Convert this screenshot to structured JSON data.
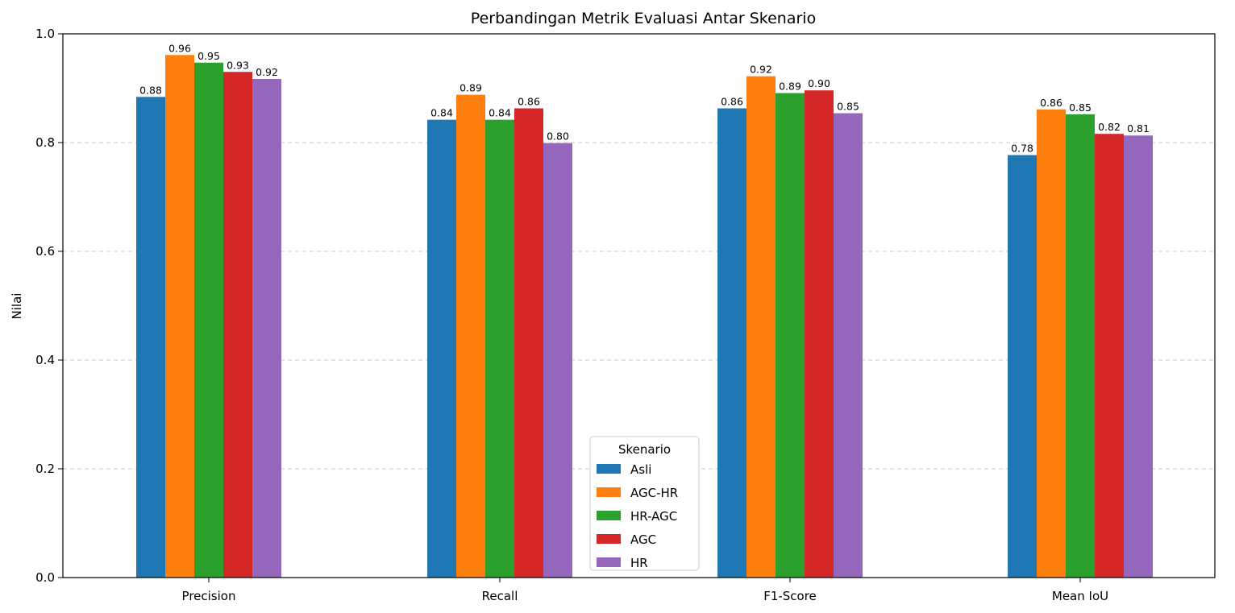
{
  "chart_data": {
    "type": "bar",
    "title": "Perbandingan Metrik Evaluasi Antar Skenario",
    "xlabel": "",
    "ylabel": "Nilai",
    "ylim": [
      0,
      1.0
    ],
    "yticks": [
      "0.0",
      "0.2",
      "0.4",
      "0.6",
      "0.8",
      "1.0"
    ],
    "grid": "y-dashed",
    "categories": [
      "Precision",
      "Recall",
      "F1-Score",
      "Mean IoU"
    ],
    "legend": {
      "title": "Skenario",
      "placement": "lower-center"
    },
    "series": [
      {
        "name": "Asli",
        "color": "#1f77b4",
        "values": [
          0.884,
          0.842,
          0.863,
          0.777
        ],
        "labels": [
          "0.88",
          "0.84",
          "0.86",
          "0.78"
        ]
      },
      {
        "name": "AGC-HR",
        "color": "#ff7f0e",
        "values": [
          0.961,
          0.888,
          0.922,
          0.861
        ],
        "labels": [
          "0.96",
          "0.89",
          "0.92",
          "0.86"
        ]
      },
      {
        "name": "HR-AGC",
        "color": "#2ca02c",
        "values": [
          0.947,
          0.842,
          0.891,
          0.852
        ],
        "labels": [
          "0.95",
          "0.84",
          "0.89",
          "0.85"
        ]
      },
      {
        "name": "AGC",
        "color": "#d62728",
        "values": [
          0.93,
          0.863,
          0.896,
          0.816
        ],
        "labels": [
          "0.93",
          "0.86",
          "0.90",
          "0.82"
        ]
      },
      {
        "name": "HR",
        "color": "#9467bd",
        "values": [
          0.917,
          0.799,
          0.854,
          0.813
        ],
        "labels": [
          "0.92",
          "0.80",
          "0.85",
          "0.81"
        ]
      }
    ]
  }
}
